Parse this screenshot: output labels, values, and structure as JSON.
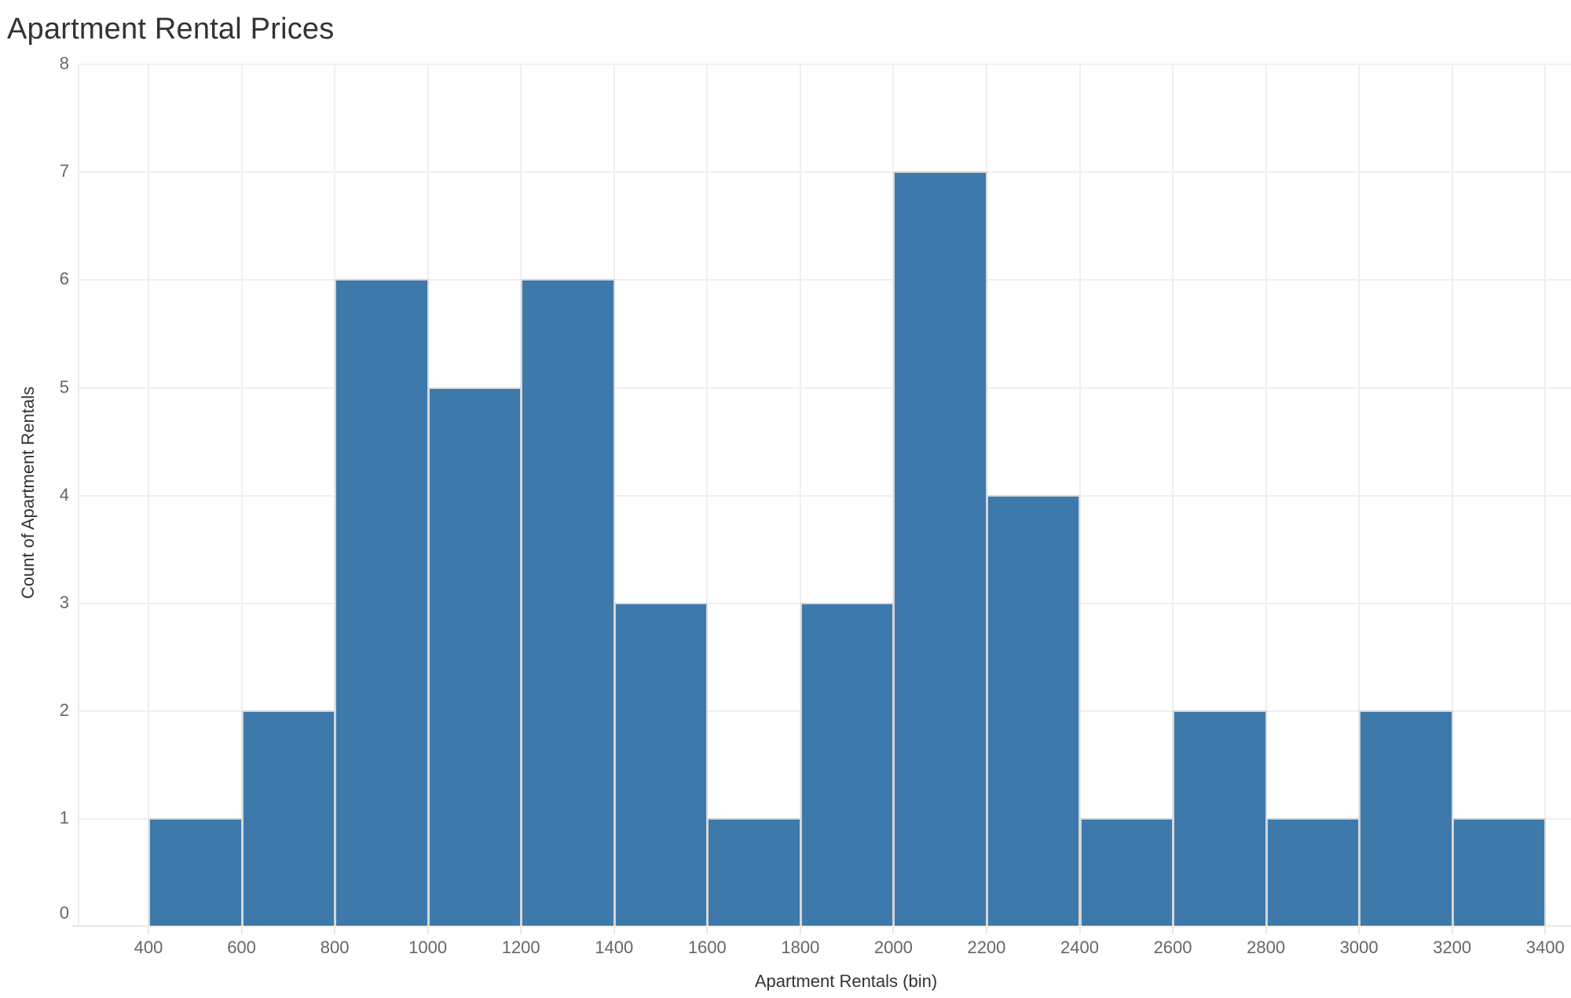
{
  "title": "Apartment Rental Prices",
  "colors": {
    "bar": "#3e79ab",
    "bar_border": "#d6d6d6",
    "grid": "#efefef",
    "axis_text": "#666666",
    "title_text": "#333333"
  },
  "chart_data": {
    "type": "bar",
    "subtype": "histogram",
    "title": "Apartment Rental Prices",
    "xlabel": "Apartment Rentals (bin)",
    "ylabel": "Count of Apartment Rentals",
    "bin_width": 200,
    "bin_starts": [
      400,
      600,
      800,
      1000,
      1200,
      1400,
      1600,
      1800,
      2000,
      2200,
      2400,
      2600,
      2800,
      3000,
      3200
    ],
    "categories": [
      "400-600",
      "600-800",
      "800-1000",
      "1000-1200",
      "1200-1400",
      "1400-1600",
      "1600-1800",
      "1800-2000",
      "2000-2200",
      "2200-2400",
      "2400-2600",
      "2600-2800",
      "2800-3000",
      "3000-3200",
      "3200-3400"
    ],
    "values": [
      1,
      2,
      6,
      5,
      6,
      3,
      1,
      3,
      7,
      4,
      1,
      2,
      1,
      2,
      1
    ],
    "x_ticks": [
      "400",
      "600",
      "800",
      "1000",
      "1200",
      "1400",
      "1600",
      "1800",
      "2000",
      "2200",
      "2400",
      "2600",
      "2800",
      "3000",
      "3200",
      "3400"
    ],
    "y_ticks": [
      "0",
      "1",
      "2",
      "3",
      "4",
      "5",
      "6",
      "7",
      "8"
    ],
    "ylim": [
      0,
      8
    ],
    "xlim": [
      250,
      3500
    ],
    "grid": true,
    "legend": null
  }
}
